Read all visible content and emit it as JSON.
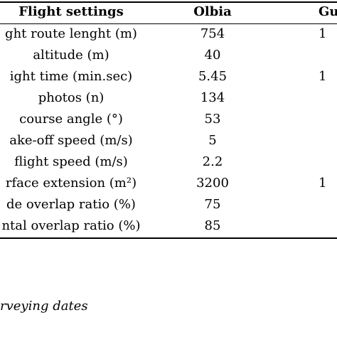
{
  "table": {
    "headers": {
      "param": "Flight settings",
      "olbia": "Olbia",
      "third": "Gu"
    },
    "rows": [
      {
        "param": "ght route lenght (m)",
        "olbia": "754",
        "third": "1"
      },
      {
        "param": "altitude (m)",
        "olbia": "40",
        "third": ""
      },
      {
        "param": "ight time (min.sec)",
        "olbia": "5.45",
        "third": "1"
      },
      {
        "param": "photos (n)",
        "olbia": "134",
        "third": ""
      },
      {
        "param": "course angle (°)",
        "olbia": "53",
        "third": ""
      },
      {
        "param": "ake-off speed (m/s)",
        "olbia": "5",
        "third": ""
      },
      {
        "param": "flight speed (m/s)",
        "olbia": "2.2",
        "third": ""
      },
      {
        "param": "rface extension (m²)",
        "olbia": "3200",
        "third": "1"
      },
      {
        "param": "de overlap ratio (%)",
        "olbia": "75",
        "third": ""
      },
      {
        "param": "ntal overlap ratio (%)",
        "olbia": "85",
        "third": ""
      }
    ]
  },
  "caption": "rveying dates"
}
